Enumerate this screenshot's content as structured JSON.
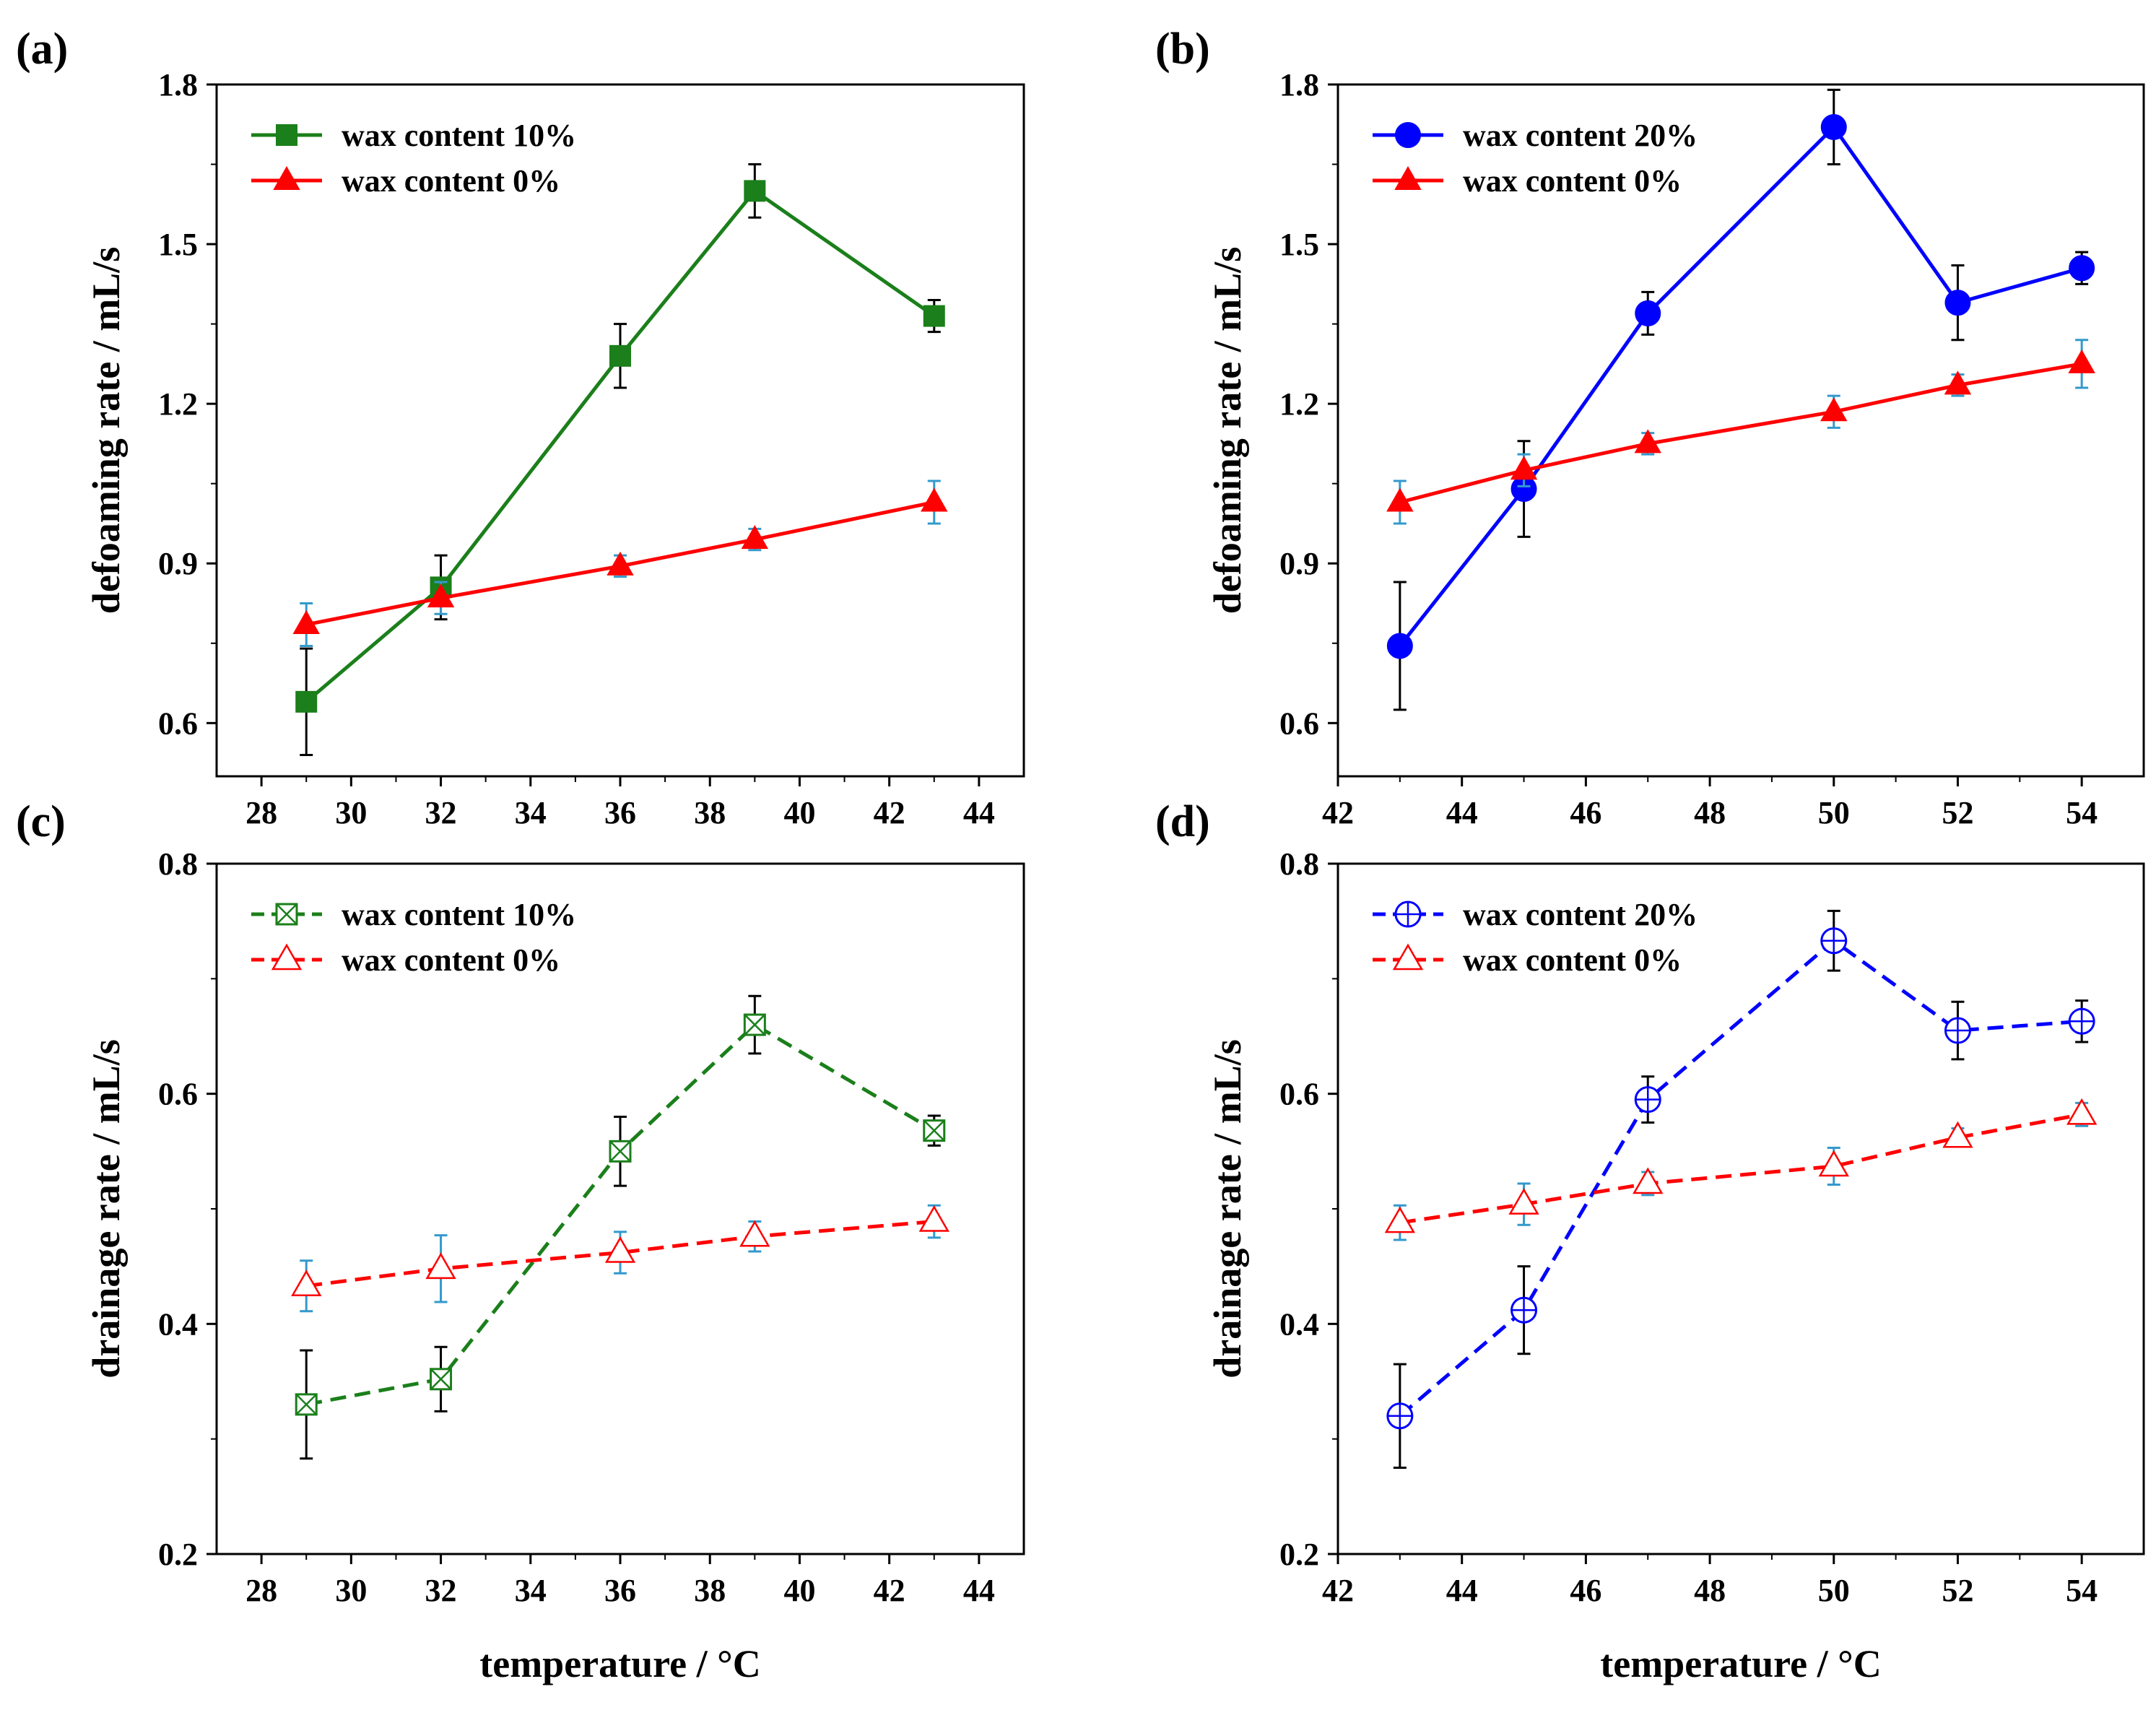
{
  "chart_data": [
    {
      "panel": "(a)",
      "type": "line",
      "xlabel": "",
      "ylabel": "defoaming rate / mL/s",
      "xlim": [
        27,
        45
      ],
      "ylim": [
        0.5,
        1.8
      ],
      "xticks": [
        "28",
        "30",
        "32",
        "34",
        "36",
        "38",
        "40",
        "42",
        "44"
      ],
      "yticks": [
        "0.6",
        "0.9",
        "1.2",
        "1.5",
        "1.8"
      ],
      "legend_position": "top-left",
      "series": [
        {
          "name": "wax content 10%",
          "color": "#1b7f1b",
          "errcolor": "#000000",
          "marker": "square",
          "dashed": false,
          "x": [
            29,
            32,
            36,
            39,
            43
          ],
          "y": [
            0.64,
            0.855,
            1.29,
            1.6,
            1.365
          ],
          "err": [
            0.1,
            0.06,
            0.06,
            0.05,
            0.03
          ]
        },
        {
          "name": "wax content 0%",
          "color": "#ff0000",
          "errcolor": "#3399cc",
          "marker": "triangle",
          "dashed": false,
          "x": [
            29,
            32,
            36,
            39,
            43
          ],
          "y": [
            0.785,
            0.835,
            0.895,
            0.945,
            1.015
          ],
          "err": [
            0.04,
            0.03,
            0.02,
            0.02,
            0.04
          ]
        }
      ]
    },
    {
      "panel": "(b)",
      "type": "line",
      "xlabel": "",
      "ylabel": "defoaming rate / mL/s",
      "xlim": [
        42,
        55
      ],
      "ylim": [
        0.5,
        1.8
      ],
      "xticks": [
        "42",
        "44",
        "46",
        "48",
        "50",
        "52",
        "54"
      ],
      "yticks": [
        "0.6",
        "0.9",
        "1.2",
        "1.5",
        "1.8"
      ],
      "legend_position": "top-left",
      "series": [
        {
          "name": "wax content 20%",
          "color": "#0000ff",
          "errcolor": "#000000",
          "marker": "circle",
          "dashed": false,
          "x": [
            43,
            45,
            47,
            50,
            52,
            54
          ],
          "y": [
            0.745,
            1.04,
            1.37,
            1.72,
            1.39,
            1.455
          ],
          "err": [
            0.12,
            0.09,
            0.04,
            0.07,
            0.07,
            0.03
          ]
        },
        {
          "name": "wax content 0%",
          "color": "#ff0000",
          "errcolor": "#3399cc",
          "marker": "triangle",
          "dashed": false,
          "x": [
            43,
            45,
            47,
            50,
            52,
            54
          ],
          "y": [
            1.015,
            1.075,
            1.125,
            1.185,
            1.235,
            1.275
          ],
          "err": [
            0.04,
            0.03,
            0.02,
            0.03,
            0.02,
            0.045
          ]
        }
      ]
    },
    {
      "panel": "(c)",
      "type": "line",
      "xlabel": "temperature / °C",
      "ylabel": "drainage rate / mL/s",
      "xlim": [
        27,
        45
      ],
      "ylim": [
        0.2,
        0.8
      ],
      "xticks": [
        "28",
        "30",
        "32",
        "34",
        "36",
        "38",
        "40",
        "42",
        "44"
      ],
      "yticks": [
        "0.2",
        "0.4",
        "0.6",
        "0.8"
      ],
      "legend_position": "top-left",
      "series": [
        {
          "name": "wax content 10%",
          "color": "#1b7f1b",
          "errcolor": "#000000",
          "marker": "square-x",
          "dashed": true,
          "x": [
            29,
            32,
            36,
            39,
            43
          ],
          "y": [
            0.33,
            0.352,
            0.55,
            0.66,
            0.568
          ],
          "err": [
            0.047,
            0.028,
            0.03,
            0.025,
            0.013
          ]
        },
        {
          "name": "wax content 0%",
          "color": "#ff0000",
          "errcolor": "#3399cc",
          "marker": "triangle-open",
          "dashed": true,
          "x": [
            29,
            32,
            36,
            39,
            43
          ],
          "y": [
            0.433,
            0.448,
            0.462,
            0.476,
            0.489
          ],
          "err": [
            0.022,
            0.029,
            0.018,
            0.013,
            0.014
          ]
        }
      ]
    },
    {
      "panel": "(d)",
      "type": "line",
      "xlabel": "temperature / °C",
      "ylabel": "drainage rate / mL/s",
      "xlim": [
        42,
        55
      ],
      "ylim": [
        0.2,
        0.8
      ],
      "xticks": [
        "42",
        "44",
        "46",
        "48",
        "50",
        "52",
        "54"
      ],
      "yticks": [
        "0.2",
        "0.4",
        "0.6",
        "0.8"
      ],
      "legend_position": "top-left",
      "series": [
        {
          "name": "wax content 20%",
          "color": "#0000ff",
          "errcolor": "#000000",
          "marker": "circle-plus",
          "dashed": true,
          "x": [
            43,
            45,
            47,
            50,
            52,
            54
          ],
          "y": [
            0.32,
            0.412,
            0.595,
            0.733,
            0.655,
            0.663
          ],
          "err": [
            0.045,
            0.038,
            0.02,
            0.026,
            0.025,
            0.018
          ]
        },
        {
          "name": "wax content 0%",
          "color": "#ff0000",
          "errcolor": "#3399cc",
          "marker": "triangle-open",
          "dashed": true,
          "x": [
            43,
            45,
            47,
            50,
            52,
            54
          ],
          "y": [
            0.488,
            0.504,
            0.522,
            0.537,
            0.562,
            0.582
          ],
          "err": [
            0.015,
            0.018,
            0.01,
            0.016,
            0.008,
            0.01
          ]
        }
      ]
    }
  ]
}
